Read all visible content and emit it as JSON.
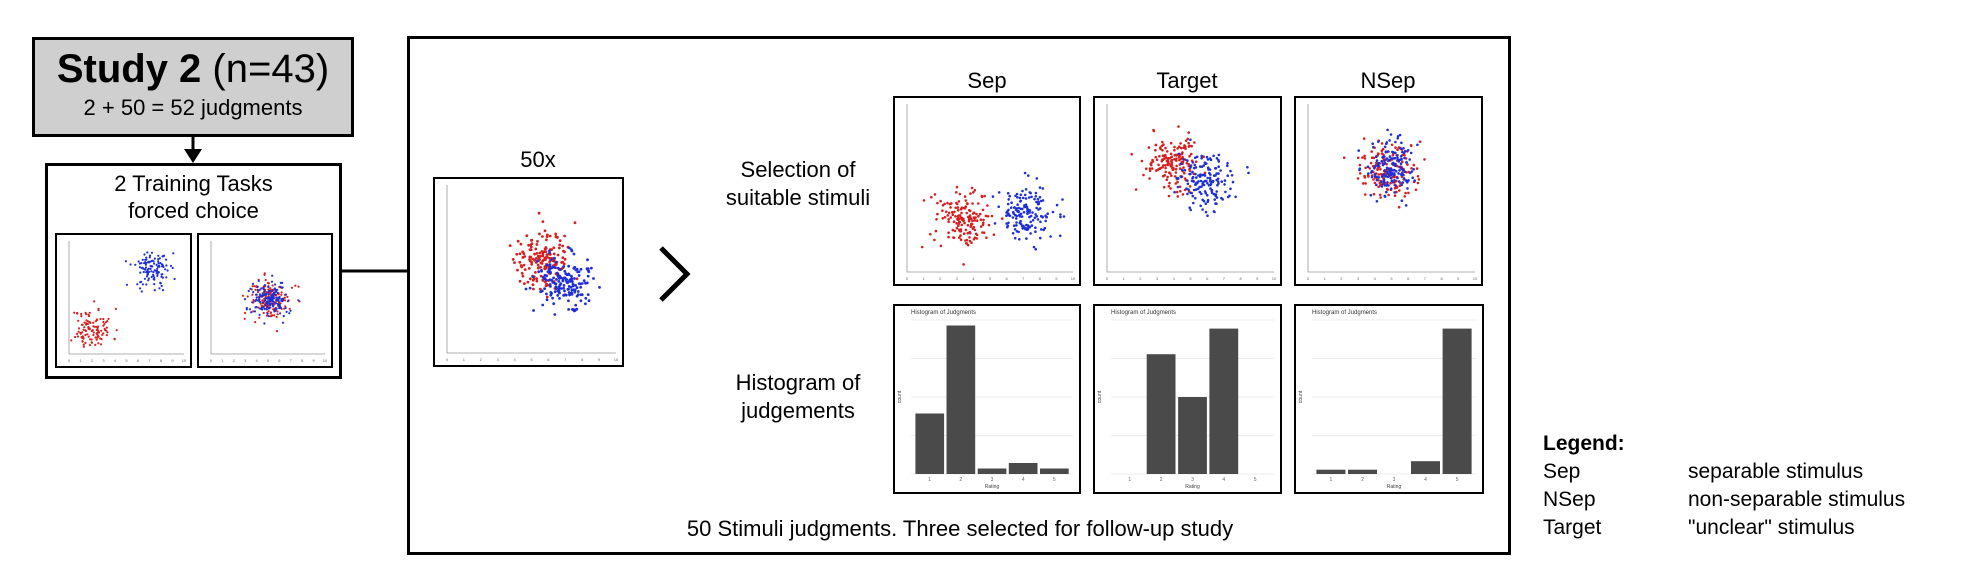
{
  "study": {
    "title_bold": "Study 2",
    "title_rest": " (n=43)",
    "subtitle": "2 + 50 = 52 judgments"
  },
  "training": {
    "title_line1": "2 Training Tasks",
    "title_line2": "forced choice"
  },
  "main": {
    "repeat_label": "50x",
    "row_labels": {
      "selection_line1": "Selection of",
      "selection_line2": "suitable stimuli",
      "histogram_line1": "Histogram of",
      "histogram_line2": "judgements"
    },
    "columns": [
      "Sep",
      "Target",
      "NSep"
    ],
    "histogram_title": "Histogram of Judgments",
    "histogram_xlabel": "Rating",
    "histogram_ylabel": "count",
    "caption": "50 Stimuli judgments. Three selected for follow-up study"
  },
  "chart_data": [
    {
      "type": "bar",
      "name": "Sep histogram",
      "title": "Histogram of Judgments",
      "xlabel": "Rating",
      "ylabel": "count",
      "categories": [
        "1",
        "2",
        "3",
        "4",
        "5"
      ],
      "values": [
        11,
        27,
        1,
        2,
        1
      ],
      "ylim": [
        0,
        28
      ]
    },
    {
      "type": "bar",
      "name": "Target histogram",
      "title": "Histogram of Judgments",
      "xlabel": "Rating",
      "ylabel": "count",
      "categories": [
        "1",
        "2",
        "3",
        "4",
        "5"
      ],
      "values": [
        0,
        14,
        9,
        17,
        0
      ],
      "ylim": [
        0,
        18
      ]
    },
    {
      "type": "bar",
      "name": "NSep histogram",
      "title": "Histogram of Judgments",
      "xlabel": "Rating",
      "ylabel": "count",
      "categories": [
        "1",
        "2",
        "3",
        "4",
        "5"
      ],
      "values": [
        1,
        1,
        0,
        3,
        34
      ],
      "ylim": [
        0,
        36
      ]
    }
  ],
  "colors": {
    "red_cluster": "#d62020",
    "blue_cluster": "#1f2fd6",
    "bar": "#4a4a4a",
    "study_box": "#cfcfcf"
  },
  "legend": {
    "title": "Legend:",
    "items": [
      {
        "key": "Sep",
        "desc": "separable stimulus"
      },
      {
        "key": "NSep",
        "desc": "non-separable stimulus"
      },
      {
        "key": "Target",
        "desc": "\"unclear\" stimulus"
      }
    ]
  }
}
